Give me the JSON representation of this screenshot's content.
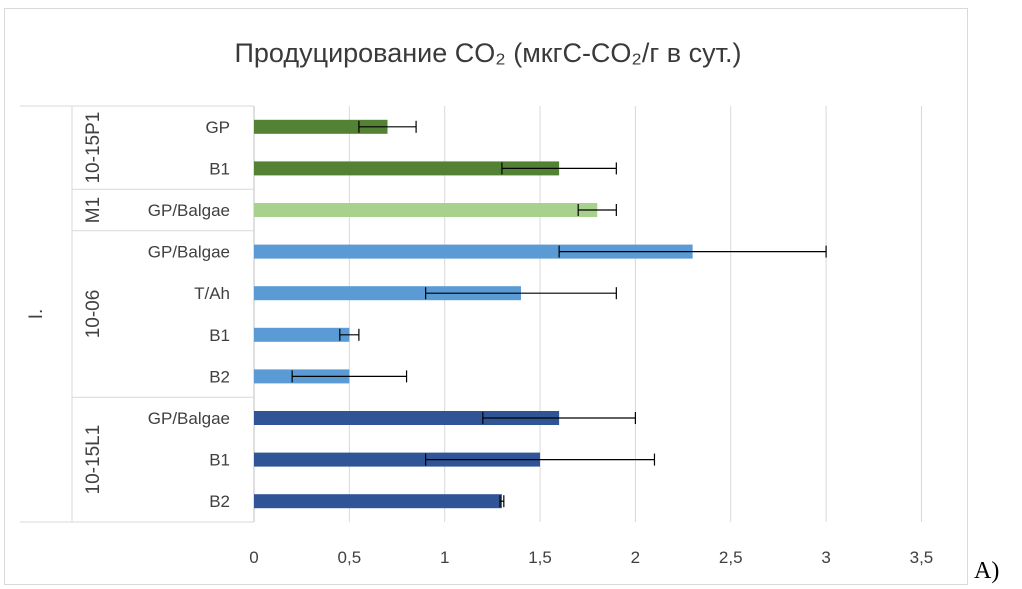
{
  "chart_data": {
    "type": "bar",
    "orientation": "horizontal",
    "title": "Продуцирование CO₂ (мкгС-CO₂/г в сут.)",
    "outer_group": "I.",
    "xlim": [
      0,
      3.5
    ],
    "x_ticks": [
      "0",
      "0,5",
      "1",
      "1,5",
      "2",
      "2,5",
      "3",
      "3,5"
    ],
    "grid": true,
    "groups": [
      {
        "name": "10-15P1",
        "color": "#548235",
        "bars": [
          {
            "label": "GP",
            "value": 0.7,
            "err_minus": 0.15,
            "err_plus": 0.15
          },
          {
            "label": "B1",
            "value": 1.6,
            "err_minus": 0.3,
            "err_plus": 0.3
          }
        ]
      },
      {
        "name": "M1",
        "color": "#a9d18e",
        "bars": [
          {
            "label": "GP/Balgae",
            "value": 1.8,
            "err_minus": 0.1,
            "err_plus": 0.1
          }
        ]
      },
      {
        "name": "10-06",
        "color": "#5b9bd5",
        "bars": [
          {
            "label": "GP/Balgae",
            "value": 2.3,
            "err_minus": 0.7,
            "err_plus": 0.7
          },
          {
            "label": "T/Ah",
            "value": 1.4,
            "err_minus": 0.5,
            "err_plus": 0.5
          },
          {
            "label": "B1",
            "value": 0.5,
            "err_minus": 0.05,
            "err_plus": 0.05
          },
          {
            "label": "B2",
            "value": 0.5,
            "err_minus": 0.3,
            "err_plus": 0.3
          }
        ]
      },
      {
        "name": "10-15L1",
        "color": "#2f5597",
        "bars": [
          {
            "label": "GP/Balgae",
            "value": 1.6,
            "err_minus": 0.4,
            "err_plus": 0.4
          },
          {
            "label": "B1",
            "value": 1.5,
            "err_minus": 0.6,
            "err_plus": 0.6
          },
          {
            "label": "B2",
            "value": 1.3,
            "err_minus": 0.01,
            "err_plus": 0.01
          }
        ]
      }
    ]
  },
  "figure_label": "A)"
}
